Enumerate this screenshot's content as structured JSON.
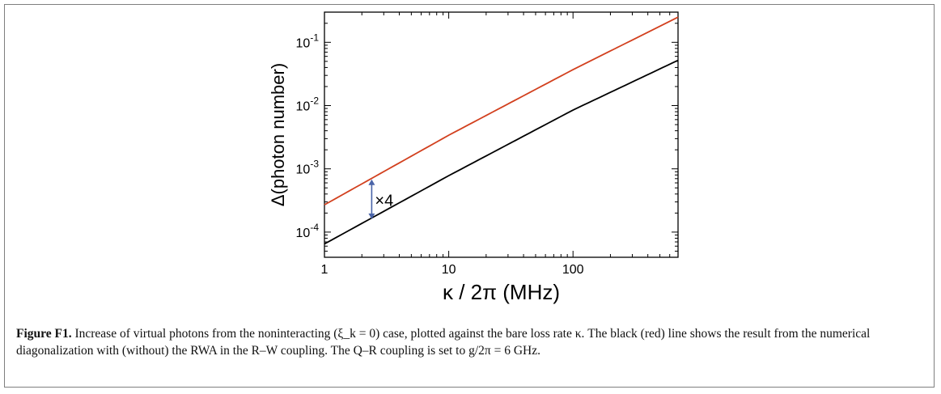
{
  "chart_data": {
    "type": "line",
    "xscale": "log",
    "yscale": "log",
    "xlim": [
      1,
      700
    ],
    "ylim": [
      4e-05,
      0.3
    ],
    "xlabel": "κ / 2π (MHz)",
    "ylabel": "Δ(photon number)",
    "x_ticks": [
      {
        "value": 1,
        "label": "1"
      },
      {
        "value": 10,
        "label": "10"
      },
      {
        "value": 100,
        "label": "100"
      }
    ],
    "y_ticks": [
      {
        "value": 0.0001,
        "base": "10",
        "exp": "-4"
      },
      {
        "value": 0.001,
        "base": "10",
        "exp": "-3"
      },
      {
        "value": 0.01,
        "base": "10",
        "exp": "-2"
      },
      {
        "value": 0.1,
        "base": "10",
        "exp": "-1"
      }
    ],
    "series": [
      {
        "color": "#d2401e",
        "points": [
          [
            1,
            0.00027
          ],
          [
            10,
            0.0034
          ],
          [
            100,
            0.037
          ],
          [
            700,
            0.25
          ]
        ]
      },
      {
        "color": "#000000",
        "points": [
          [
            1,
            6.5e-05
          ],
          [
            10,
            0.00078
          ],
          [
            100,
            0.0085
          ],
          [
            700,
            0.052
          ]
        ]
      }
    ],
    "annotation": {
      "text": "×4",
      "x": 2.4,
      "y_top": 0.00068,
      "y_bottom": 0.00016,
      "color": "#4a64a8"
    },
    "grid": false
  },
  "caption": {
    "label": "Figure F1.",
    "text": "Increase of virtual photons from the noninteracting (ξ_k = 0) case, plotted against the bare loss rate κ. The black (red) line shows the result from the numerical diagonalization with (without) the RWA in the R–W coupling. The Q–R coupling is set to g/2π = 6 GHz."
  }
}
